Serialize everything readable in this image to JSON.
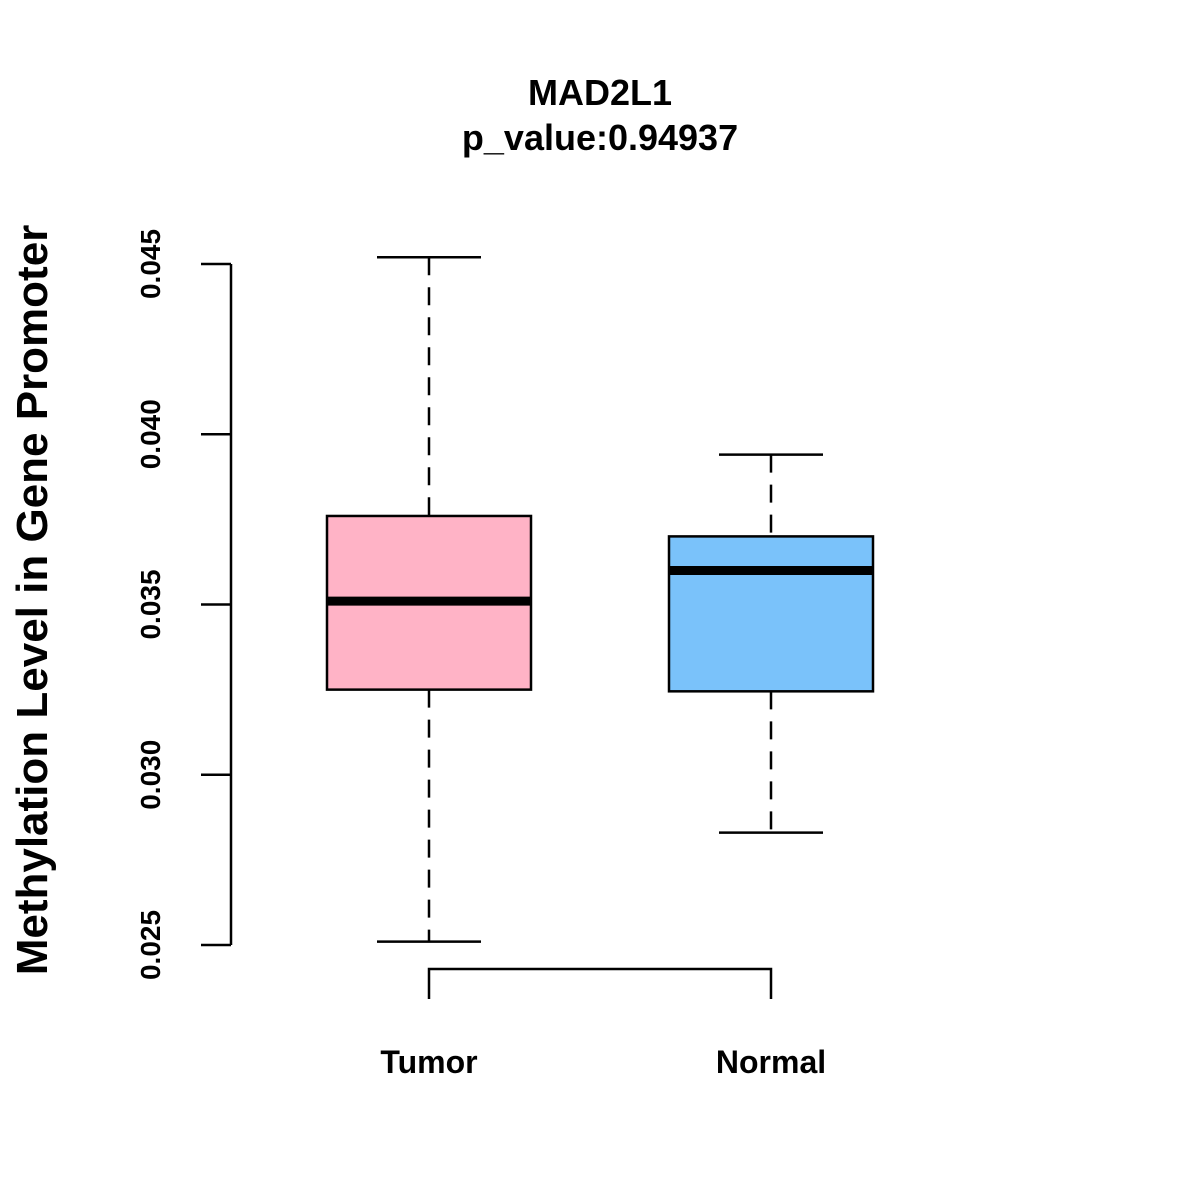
{
  "chart_data": {
    "type": "boxplot",
    "title": "MAD2L1",
    "subtitle": "p_value:0.94937",
    "ylabel": "Methylation Level in Gene Promoter",
    "xlabel": "",
    "ylim": [
      0.025,
      0.045
    ],
    "yticks": [
      {
        "value": 0.025,
        "label": "0.025"
      },
      {
        "value": 0.03,
        "label": "0.030"
      },
      {
        "value": 0.035,
        "label": "0.035"
      },
      {
        "value": 0.04,
        "label": "0.040"
      },
      {
        "value": 0.045,
        "label": "0.045"
      }
    ],
    "grid": false,
    "legend": "none",
    "comparison_bracket": {
      "from": "Tumor",
      "to": "Normal"
    },
    "boxes": [
      {
        "category": "Tumor",
        "min": 0.0251,
        "q1": 0.0325,
        "median": 0.0351,
        "q3": 0.0376,
        "max": 0.0452,
        "color": "#FFB3C6"
      },
      {
        "category": "Normal",
        "min": 0.0283,
        "q1": 0.03245,
        "median": 0.036,
        "q3": 0.037,
        "max": 0.0394,
        "color": "#7AC2FA"
      }
    ]
  }
}
